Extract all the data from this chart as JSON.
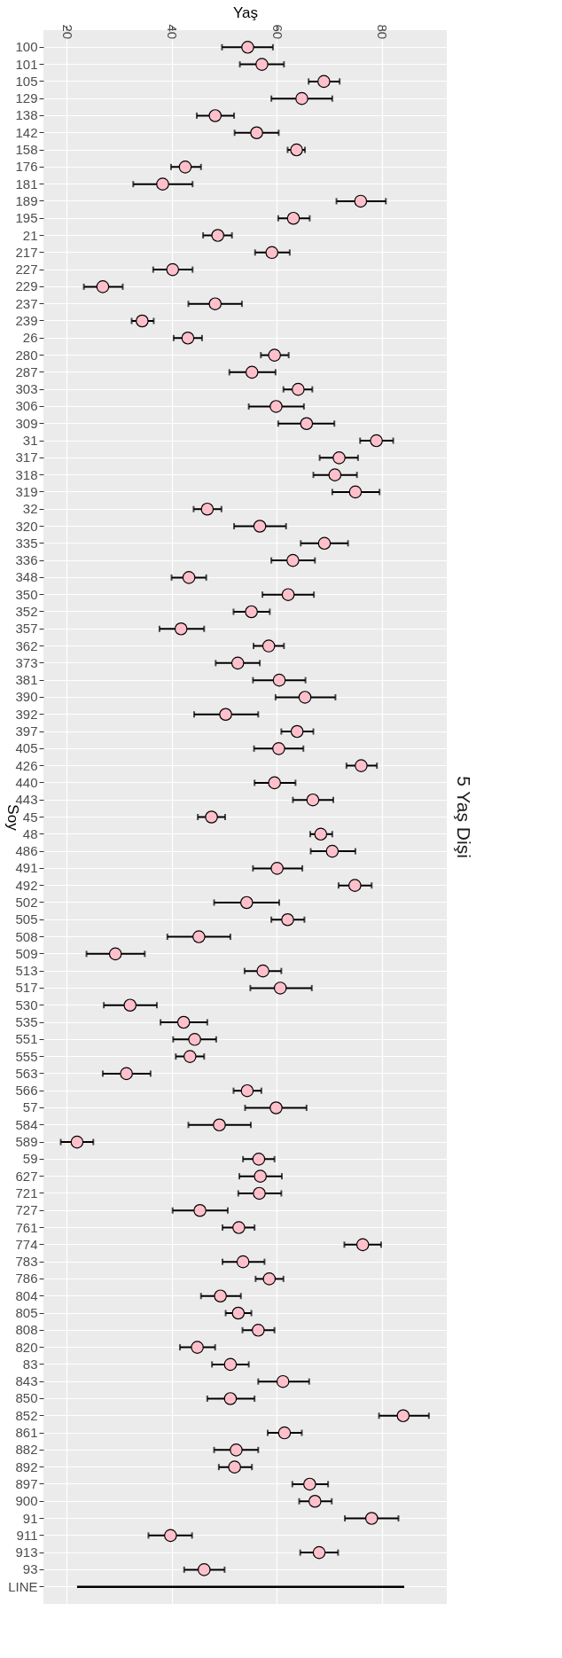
{
  "chart_data": {
    "type": "scatter",
    "orientation": "horizontal",
    "title": "5 Yaş Dişi",
    "xlabel": "Yaş",
    "ylabel": "Soy",
    "categories": [
      "100",
      "101",
      "105",
      "129",
      "138",
      "142",
      "158",
      "176",
      "181",
      "189",
      "195",
      "21",
      "217",
      "227",
      "229",
      "237",
      "239",
      "26",
      "280",
      "287",
      "303",
      "306",
      "309",
      "31",
      "317",
      "318",
      "319",
      "32",
      "320",
      "335",
      "336",
      "348",
      "350",
      "352",
      "357",
      "362",
      "373",
      "381",
      "390",
      "392",
      "397",
      "405",
      "426",
      "440",
      "443",
      "45",
      "48",
      "486",
      "491",
      "492",
      "502",
      "505",
      "508",
      "509",
      "513",
      "517",
      "530",
      "535",
      "551",
      "555",
      "563",
      "566",
      "57",
      "584",
      "589",
      "59",
      "627",
      "721",
      "727",
      "761",
      "774",
      "783",
      "786",
      "804",
      "805",
      "808",
      "820",
      "83",
      "843",
      "850",
      "852",
      "861",
      "882",
      "892",
      "897",
      "900",
      "91",
      "911",
      "913",
      "93",
      "LINE"
    ],
    "series": [
      {
        "color": "#ffc0cb",
        "values": [
          54.5,
          57.2,
          69.0,
          64.8,
          48.3,
          56.2,
          63.8,
          42.6,
          38.3,
          76.0,
          63.2,
          48.8,
          59.1,
          40.2,
          26.9,
          48.3,
          34.4,
          43.1,
          59.6,
          55.3,
          64.1,
          59.9,
          65.7,
          79.0,
          71.9,
          71.1,
          75.0,
          46.8,
          56.8,
          69.1,
          63.1,
          43.3,
          62.2,
          55.2,
          41.8,
          58.5,
          52.6,
          60.5,
          65.4,
          50.3,
          63.9,
          60.4,
          76.1,
          59.6,
          66.9,
          47.6,
          68.4,
          70.6,
          60.1,
          74.9,
          54.3,
          62.1,
          45.2,
          29.3,
          57.4,
          60.7,
          32.1,
          42.3,
          44.4,
          43.5,
          31.4,
          54.4,
          59.9,
          49.1,
          22.0,
          56.6,
          56.9,
          56.7,
          45.4,
          52.8,
          76.4,
          53.6,
          58.6,
          49.3,
          52.7,
          56.5,
          44.9,
          51.2,
          61.2,
          51.2,
          84.1,
          61.5,
          52.3,
          52.0,
          66.3,
          67.3,
          78.1,
          39.8,
          68.1,
          46.2,
          null
        ],
        "errors": [
          [
            49.6,
            59.3
          ],
          [
            53.0,
            61.4
          ],
          [
            66.1,
            72.0
          ],
          [
            59.0,
            70.6
          ],
          [
            44.8,
            51.9
          ],
          [
            52.0,
            60.4
          ],
          [
            62.1,
            65.4
          ],
          [
            39.9,
            45.6
          ],
          [
            32.7,
            44.0
          ],
          [
            71.4,
            80.8
          ],
          [
            60.3,
            66.3
          ],
          [
            46.0,
            51.5
          ],
          [
            55.9,
            62.5
          ],
          [
            36.5,
            44.0
          ],
          [
            23.3,
            30.7
          ],
          [
            43.2,
            53.4
          ],
          [
            32.4,
            36.6
          ],
          [
            40.4,
            45.8
          ],
          [
            57.0,
            62.3
          ],
          [
            51.0,
            59.8
          ],
          [
            61.3,
            66.8
          ],
          [
            54.7,
            65.2
          ],
          [
            60.3,
            71.0
          ],
          [
            75.9,
            82.2
          ],
          [
            68.2,
            75.5
          ],
          [
            67.0,
            75.3
          ],
          [
            70.6,
            79.6
          ],
          [
            44.2,
            49.5
          ],
          [
            51.9,
            61.8
          ],
          [
            64.6,
            73.6
          ],
          [
            59.0,
            67.3
          ],
          [
            40.0,
            46.6
          ],
          [
            57.3,
            67.1
          ],
          [
            51.8,
            58.7
          ],
          [
            37.7,
            46.2
          ],
          [
            55.6,
            61.4
          ],
          [
            48.4,
            56.8
          ],
          [
            55.5,
            65.5
          ],
          [
            59.8,
            71.2
          ],
          [
            44.3,
            56.5
          ],
          [
            60.9,
            67.0
          ],
          [
            55.7,
            65.1
          ],
          [
            73.3,
            79.1
          ],
          [
            55.8,
            63.6
          ],
          [
            63.1,
            70.8
          ],
          [
            45.0,
            50.2
          ],
          [
            66.4,
            70.6
          ],
          [
            66.5,
            75.0
          ],
          [
            55.5,
            64.9
          ],
          [
            71.8,
            78.1
          ],
          [
            48.1,
            60.5
          ],
          [
            59.0,
            65.3
          ],
          [
            39.2,
            51.2
          ],
          [
            23.8,
            34.9
          ],
          [
            53.9,
            60.9
          ],
          [
            55.0,
            66.7
          ],
          [
            27.1,
            37.2
          ],
          [
            37.9,
            46.8
          ],
          [
            40.3,
            48.5
          ],
          [
            40.8,
            46.2
          ],
          [
            26.9,
            36.0
          ],
          [
            51.8,
            57.1
          ],
          [
            54.0,
            65.7
          ],
          [
            43.2,
            55.1
          ],
          [
            18.9,
            25.1
          ],
          [
            53.6,
            59.6
          ],
          [
            52.9,
            61.0
          ],
          [
            52.7,
            60.9
          ],
          [
            40.2,
            50.7
          ],
          [
            49.7,
            55.8
          ],
          [
            72.9,
            79.9
          ],
          [
            49.7,
            57.7
          ],
          [
            56.0,
            61.3
          ],
          [
            45.6,
            53.2
          ],
          [
            50.3,
            55.2
          ],
          [
            53.5,
            59.6
          ],
          [
            41.6,
            48.3
          ],
          [
            47.7,
            54.7
          ],
          [
            56.5,
            66.2
          ],
          [
            46.8,
            55.8
          ],
          [
            79.5,
            89.0
          ],
          [
            58.3,
            64.8
          ],
          [
            48.1,
            56.5
          ],
          [
            49.0,
            55.3
          ],
          [
            63.0,
            69.8
          ],
          [
            64.3,
            70.5
          ],
          [
            73.0,
            83.2
          ],
          [
            35.6,
            43.9
          ],
          [
            64.5,
            71.7
          ],
          [
            42.4,
            50.1
          ],
          null
        ]
      },
      {
        "type": "line",
        "marker": "none",
        "line_style": "solid",
        "color": "#000000",
        "x": [
          "LINE",
          "LINE"
        ],
        "values": [
          22.0,
          84.3
        ]
      }
    ],
    "xlim": [
      15.6,
      92.4
    ],
    "xticks": [
      20,
      40,
      60,
      80
    ],
    "grid": true,
    "marker": "circle"
  }
}
